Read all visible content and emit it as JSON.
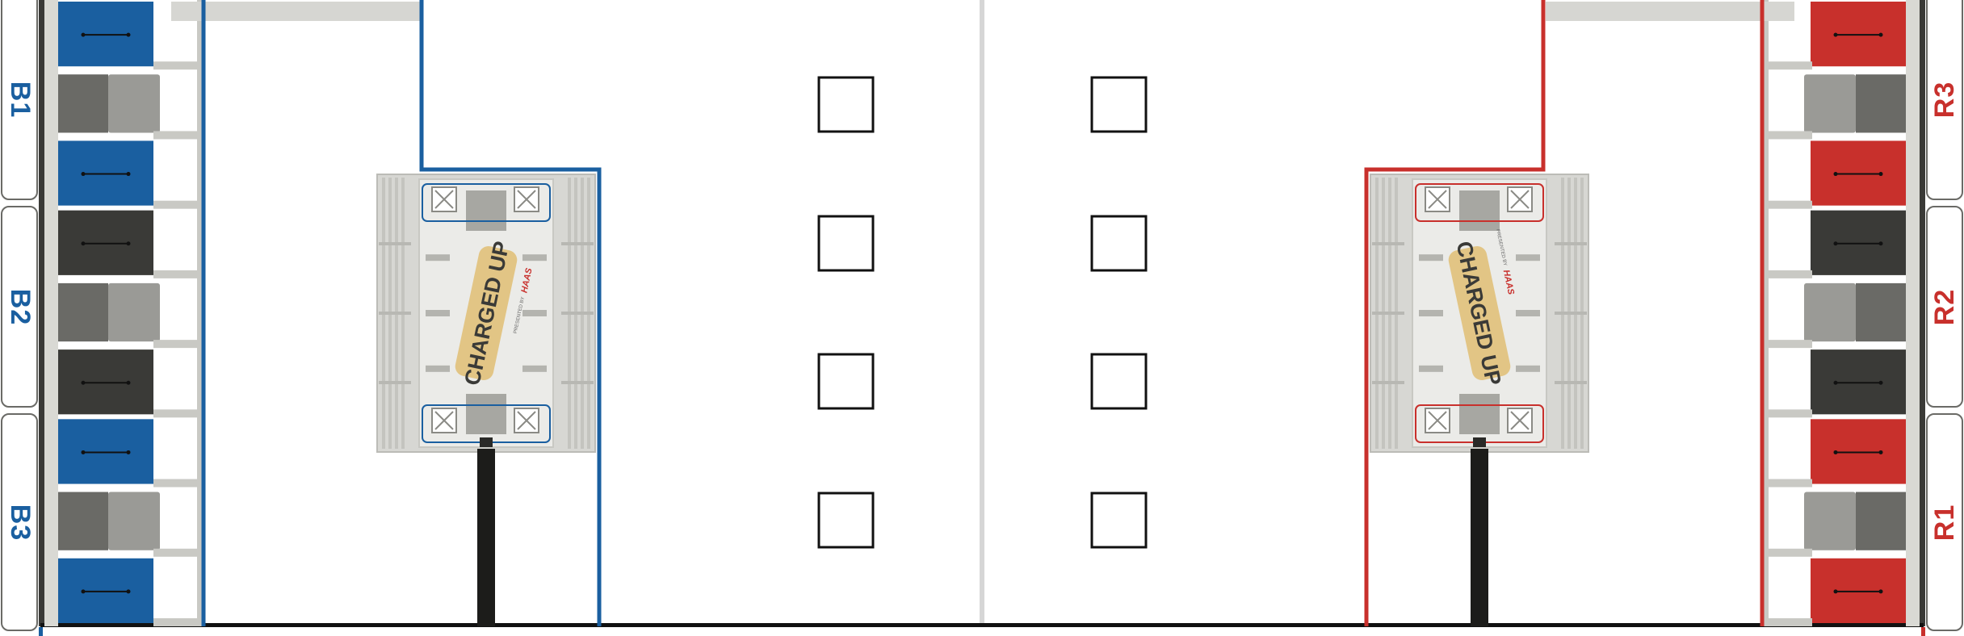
{
  "field": {
    "colors": {
      "blue": "#1a5fa0",
      "red": "#c8302c",
      "dark_grey": "#3a3a37",
      "mid_grey": "#6a6a66",
      "light_grey": "#9a9a96",
      "rail_grey": "#c9c9c4",
      "line": "#111111",
      "center_line": "#d6d6d6",
      "logo_tan": "#e2c585"
    },
    "blue_alliance": {
      "driver_stations": [
        {
          "label": "B1"
        },
        {
          "label": "B2"
        },
        {
          "label": "B3"
        }
      ],
      "grid_nodes": [
        "cone",
        "cube",
        "cone",
        "cone",
        "cube",
        "cone",
        "cone",
        "cube",
        "cone"
      ],
      "charge_station_logo": {
        "title": "CHARGED UP",
        "sponsor": "HAAS",
        "presented_by": "PRESENTED BY"
      }
    },
    "red_alliance": {
      "driver_stations": [
        {
          "label": "R3"
        },
        {
          "label": "R2"
        },
        {
          "label": "R1"
        }
      ],
      "grid_nodes": [
        "cone",
        "cube",
        "cone",
        "cone",
        "cube",
        "cone",
        "cone",
        "cube",
        "cone"
      ],
      "charge_station_logo": {
        "title": "CHARGED UP",
        "sponsor": "HAAS",
        "presented_by": "PRESENTED BY"
      }
    },
    "staged_game_pieces": {
      "blue_side_count": 4,
      "red_side_count": 4,
      "icon": "square-outline-icon"
    }
  }
}
